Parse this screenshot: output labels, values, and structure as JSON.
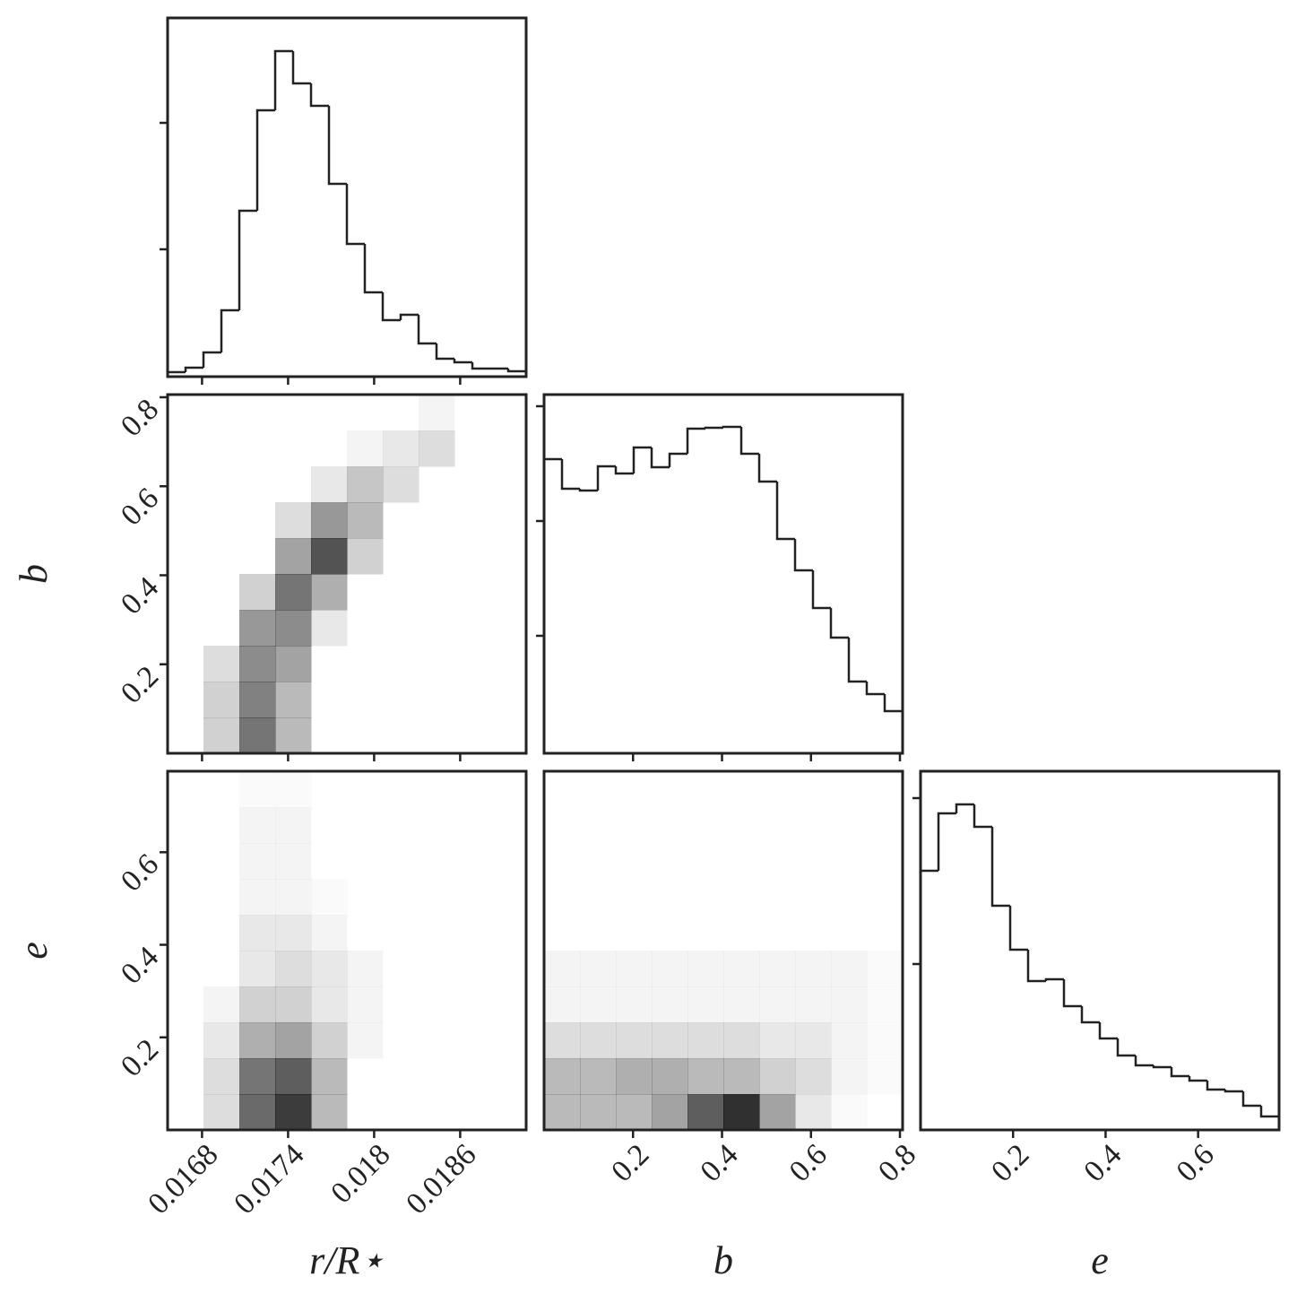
{
  "chart_data": [
    {
      "type": "histogram",
      "bins": [
        0.01656,
        0.016685,
        0.01681,
        0.016935,
        0.01706,
        0.017185,
        0.01731,
        0.017435,
        0.01756,
        0.017685,
        0.01781,
        0.017935,
        0.01806,
        0.018185,
        0.01831,
        0.018435,
        0.01856,
        0.018685,
        0.01881,
        0.018935,
        0.01906
      ],
      "values": [
        5,
        10,
        27,
        74,
        185,
        297,
        363,
        327,
        302,
        215,
        148,
        94,
        63,
        69,
        37,
        20,
        16,
        9,
        9,
        6
      ],
      "xlim": [
        0.01656,
        0.01906
      ],
      "xticks": [
        0.0168,
        0.0174,
        0.018,
        0.0186
      ],
      "xtick_labels": false,
      "ylim": [
        0,
        400
      ],
      "yticks": [
        142,
        283
      ],
      "ytick_labels": false,
      "color": "#222222"
    },
    {
      "type": "histogram",
      "bins": [
        0,
        0.0403,
        0.0806,
        0.1209,
        0.1612,
        0.2015,
        0.2418,
        0.2821,
        0.3224,
        0.3627,
        0.403,
        0.4433,
        0.4836,
        0.5239,
        0.5642,
        0.6045,
        0.6448,
        0.6851,
        0.7254,
        0.7657,
        0.806
      ],
      "values": [
        328,
        295,
        293,
        320,
        312,
        341,
        319,
        334,
        362,
        363,
        364,
        334,
        303,
        239,
        204,
        162,
        129,
        80,
        66,
        47
      ],
      "xlim": [
        0,
        0.806
      ],
      "xticks": [
        0.2,
        0.4,
        0.6,
        0.8
      ],
      "xtick_labels": false,
      "ylim": [
        0,
        400
      ],
      "yticks": [
        131,
        259,
        387
      ],
      "ytick_labels": false,
      "color": "#222222"
    },
    {
      "type": "histogram",
      "bins": [
        0,
        0.03875,
        0.0775,
        0.11625,
        0.155,
        0.19375,
        0.2325,
        0.27125,
        0.31,
        0.34875,
        0.3875,
        0.42625,
        0.465,
        0.50375,
        0.5425,
        0.58125,
        0.62,
        0.65875,
        0.6975,
        0.73625,
        0.775
      ],
      "values": [
        289,
        353,
        363,
        338,
        250,
        201,
        166,
        168,
        138,
        120,
        102,
        83,
        72,
        70,
        60,
        55,
        45,
        43,
        27,
        15
      ],
      "xlim": [
        0,
        0.775
      ],
      "xticks": [
        0.2,
        0.4,
        0.6
      ],
      "xtick_labels": true,
      "xlabel": "e",
      "ylim": [
        0,
        400
      ],
      "yticks": [
        185,
        370
      ],
      "ytick_labels": false,
      "color": "#222222"
    },
    {
      "type": "hist2d",
      "xlim": [
        0.01656,
        0.01906
      ],
      "xticks": [
        0.0168,
        0.0174,
        0.018,
        0.0186
      ],
      "xtick_labels": false,
      "ylim": [
        0,
        0.806
      ],
      "yticks": [
        0.2,
        0.4,
        0.6,
        0.8
      ],
      "ytick_labels": true,
      "ylabel": "b",
      "density": [
        [
          0,
          0,
          0,
          0,
          0,
          0,
          0,
          0.05,
          0,
          0
        ],
        [
          0,
          0,
          0,
          0,
          0,
          0.05,
          0.1,
          0.15,
          0,
          0
        ],
        [
          0,
          0,
          0,
          0,
          0.1,
          0.25,
          0.15,
          0,
          0,
          0
        ],
        [
          0,
          0,
          0,
          0.15,
          0.45,
          0.3,
          0,
          0,
          0,
          0
        ],
        [
          0,
          0,
          0,
          0.4,
          0.75,
          0.2,
          0,
          0,
          0,
          0
        ],
        [
          0,
          0,
          0.2,
          0.6,
          0.35,
          0,
          0,
          0,
          0,
          0
        ],
        [
          0,
          0,
          0.45,
          0.5,
          0.1,
          0,
          0,
          0,
          0,
          0
        ],
        [
          0,
          0.15,
          0.5,
          0.4,
          0,
          0,
          0,
          0,
          0,
          0
        ],
        [
          0,
          0.2,
          0.55,
          0.3,
          0,
          0,
          0,
          0,
          0,
          0
        ],
        [
          0,
          0.2,
          0.6,
          0.3,
          0,
          0,
          0,
          0,
          0,
          0
        ]
      ]
    },
    {
      "type": "hist2d",
      "xlim": [
        0.01656,
        0.01906
      ],
      "xticks": [
        0.0168,
        0.0174,
        0.018,
        0.0186
      ],
      "xtick_labels": true,
      "xlabel": "r/R⋆",
      "ylim": [
        0,
        0.775
      ],
      "yticks": [
        0.2,
        0.4,
        0.6
      ],
      "ytick_labels": true,
      "ylabel": "e",
      "density": [
        [
          0,
          0,
          0.02,
          0.02,
          0,
          0,
          0,
          0,
          0,
          0
        ],
        [
          0,
          0,
          0.05,
          0.05,
          0,
          0,
          0,
          0,
          0,
          0
        ],
        [
          0,
          0,
          0.05,
          0.05,
          0,
          0,
          0,
          0,
          0,
          0
        ],
        [
          0,
          0,
          0.05,
          0.05,
          0.02,
          0,
          0,
          0,
          0,
          0
        ],
        [
          0,
          0,
          0.1,
          0.1,
          0.05,
          0,
          0,
          0,
          0,
          0
        ],
        [
          0,
          0,
          0.1,
          0.15,
          0.1,
          0.05,
          0,
          0,
          0,
          0
        ],
        [
          0,
          0.05,
          0.2,
          0.2,
          0.1,
          0.05,
          0,
          0,
          0,
          0
        ],
        [
          0,
          0.1,
          0.35,
          0.4,
          0.2,
          0.05,
          0,
          0,
          0,
          0
        ],
        [
          0,
          0.15,
          0.6,
          0.7,
          0.3,
          0,
          0,
          0,
          0,
          0
        ],
        [
          0,
          0.15,
          0.65,
          0.85,
          0.3,
          0,
          0,
          0,
          0,
          0
        ]
      ]
    },
    {
      "type": "hist2d",
      "xlim": [
        0,
        0.806
      ],
      "xticks": [
        0.2,
        0.4,
        0.6,
        0.8
      ],
      "xtick_labels": true,
      "xlabel": "b",
      "ylim": [
        0,
        0.775
      ],
      "density": [
        [
          0,
          0,
          0,
          0,
          0,
          0,
          0,
          0,
          0,
          0
        ],
        [
          0,
          0,
          0,
          0,
          0,
          0,
          0,
          0,
          0,
          0
        ],
        [
          0,
          0,
          0,
          0,
          0,
          0,
          0,
          0,
          0,
          0
        ],
        [
          0,
          0,
          0,
          0,
          0,
          0,
          0,
          0,
          0,
          0
        ],
        [
          0,
          0,
          0,
          0,
          0,
          0,
          0,
          0,
          0,
          0
        ],
        [
          0.05,
          0.05,
          0.05,
          0.05,
          0.05,
          0.05,
          0.05,
          0.05,
          0.05,
          0.02
        ],
        [
          0.05,
          0.05,
          0.05,
          0.05,
          0.05,
          0.05,
          0.05,
          0.05,
          0.05,
          0.02
        ],
        [
          0.15,
          0.15,
          0.15,
          0.15,
          0.15,
          0.15,
          0.1,
          0.1,
          0.05,
          0.02
        ],
        [
          0.3,
          0.3,
          0.35,
          0.35,
          0.3,
          0.3,
          0.2,
          0.15,
          0.05,
          0.02
        ],
        [
          0.3,
          0.3,
          0.3,
          0.4,
          0.7,
          0.9,
          0.4,
          0.1,
          0.02,
          0
        ]
      ]
    }
  ]
}
